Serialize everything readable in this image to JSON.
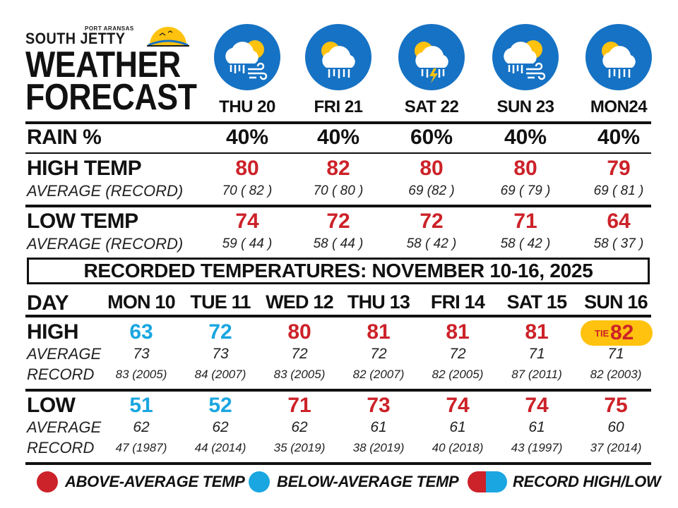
{
  "logo": {
    "port": "PORT ARANSAS",
    "name": "SOUTH JETTY"
  },
  "title": {
    "line1": "WEATHER",
    "line2": "FORECAST"
  },
  "forecast": {
    "days": [
      {
        "label": "THU 20",
        "icon": "rain-wind-sun-icon",
        "rain": "40%",
        "high": "80",
        "high_avg_rec": "70 ( 82 )",
        "low": "74",
        "low_avg_rec": "59 ( 44 )"
      },
      {
        "label": "FRI 21",
        "icon": "sun-cloud-rain-icon",
        "rain": "40%",
        "high": "82",
        "high_avg_rec": "70 ( 80 )",
        "low": "72",
        "low_avg_rec": "58 ( 44 )"
      },
      {
        "label": "SAT 22",
        "icon": "sun-cloud-thunderstorm-icon",
        "rain": "60%",
        "high": "80",
        "high_avg_rec": "69 (82 )",
        "low": "72",
        "low_avg_rec": "58 ( 42 )"
      },
      {
        "label": "SUN 23",
        "icon": "rain-wind-sun-icon",
        "rain": "40%",
        "high": "80",
        "high_avg_rec": "69 ( 79 )",
        "low": "71",
        "low_avg_rec": "58 ( 42 )"
      },
      {
        "label": "MON24",
        "icon": "sun-cloud-rain-icon",
        "rain": "40%",
        "high": "79",
        "high_avg_rec": "69 ( 81 )",
        "low": "64",
        "low_avg_rec": "58 ( 37 )"
      }
    ],
    "labels": {
      "rain": "RAIN %",
      "high": "HIGH TEMP",
      "low": "LOW TEMP",
      "avg_rec": "AVERAGE (RECORD)"
    }
  },
  "recorded": {
    "banner": "RECORDED TEMPERATURES: NOVEMBER 10-16, 2025",
    "labels": {
      "day": "DAY",
      "high": "HIGH",
      "low": "LOW",
      "average": "AVERAGE",
      "record": "RECORD"
    },
    "days": [
      {
        "label": "MON 10",
        "high": "63",
        "high_status": "below",
        "high_avg": "73",
        "high_record": "83 (2005)",
        "low": "51",
        "low_status": "below",
        "low_avg": "62",
        "low_record": "47 (1987)"
      },
      {
        "label": "TUE 11",
        "high": "72",
        "high_status": "below",
        "high_avg": "73",
        "high_record": "84 (2007)",
        "low": "52",
        "low_status": "below",
        "low_avg": "62",
        "low_record": "44 (2014)"
      },
      {
        "label": "WED 12",
        "high": "80",
        "high_status": "above",
        "high_avg": "72",
        "high_record": "83 (2005)",
        "low": "71",
        "low_status": "above",
        "low_avg": "62",
        "low_record": "35 (2019)"
      },
      {
        "label": "THU 13",
        "high": "81",
        "high_status": "above",
        "high_avg": "72",
        "high_record": "82 (2007)",
        "low": "73",
        "low_status": "above",
        "low_avg": "61",
        "low_record": "38 (2019)"
      },
      {
        "label": "FRI 14",
        "high": "81",
        "high_status": "above",
        "high_avg": "72",
        "high_record": "82 (2005)",
        "low": "74",
        "low_status": "above",
        "low_avg": "61",
        "low_record": "40 (2018)"
      },
      {
        "label": "SAT 15",
        "high": "81",
        "high_status": "above",
        "high_avg": "71",
        "high_record": "87 (2011)",
        "low": "74",
        "low_status": "above",
        "low_avg": "61",
        "low_record": "43 (1997)"
      },
      {
        "label": "SUN 16",
        "high": "82",
        "high_status": "record-tie",
        "high_tie_label": "TIE",
        "high_avg": "71",
        "high_record": "82 (2003)",
        "low": "75",
        "low_status": "above",
        "low_avg": "60",
        "low_record": "37 (2014)"
      }
    ]
  },
  "legend": {
    "above": "ABOVE-AVERAGE TEMP",
    "below": "BELOW-AVERAGE TEMP",
    "record": "RECORD HIGH/LOW"
  },
  "colors": {
    "above": "#cc2229",
    "below": "#1aa6e0",
    "icon_bg": "#1672c4",
    "sun": "#ffc20e",
    "tie_pill": "#ffc20e"
  }
}
